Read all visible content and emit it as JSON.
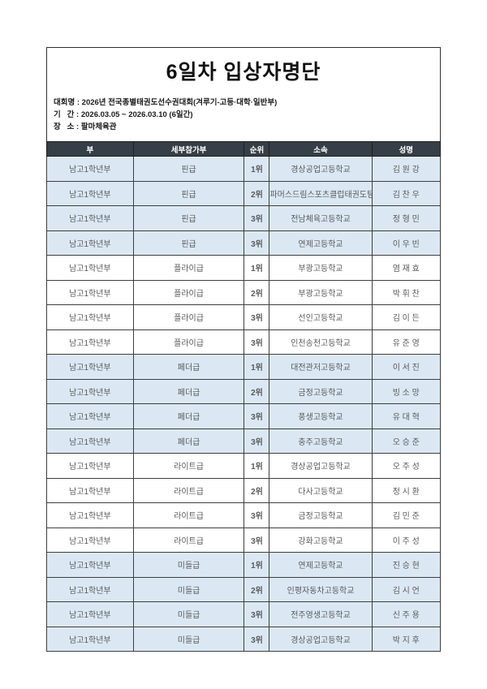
{
  "page": {
    "title": "6일차 입상자명단",
    "info_lines": [
      "대회명 : 2026년 전국종별태권도선수권대회(겨루기-고등·대학·일반부)",
      "기   간 : 2026.03.05 ~ 2026.03.10 (6일간)",
      "장   소 : 팔마체육관"
    ]
  },
  "colors": {
    "header_bg": "#363e47",
    "band_blue": "#dbe8f4",
    "body_text": "#595959",
    "border": "#3e3e3e"
  },
  "table": {
    "headers": [
      "부",
      "세부참가부",
      "순위",
      "소속",
      "성명"
    ],
    "rows": [
      [
        "남고1학년부",
        "핀급",
        "1위",
        "경상공업고등학교",
        "김 원 강"
      ],
      [
        "남고1학년부",
        "핀급",
        "2위",
        "파머스드림스포츠클럽태권도팀",
        "김 찬 우"
      ],
      [
        "남고1학년부",
        "핀급",
        "3위",
        "전남체육고등학교",
        "정 형 민"
      ],
      [
        "남고1학년부",
        "핀급",
        "3위",
        "연제고등학교",
        "이 우 빈"
      ],
      [
        "남고1학년부",
        "플라이급",
        "1위",
        "부광고등학교",
        "염 재 효"
      ],
      [
        "남고1학년부",
        "플라이급",
        "2위",
        "부광고등학교",
        "박 휘 찬"
      ],
      [
        "남고1학년부",
        "플라이급",
        "3위",
        "선인고등학교",
        "김 이 든"
      ],
      [
        "남고1학년부",
        "플라이급",
        "3위",
        "인천송천고등학교",
        "유 준 영"
      ],
      [
        "남고1학년부",
        "페더급",
        "1위",
        "대전관저고등학교",
        "이 서 진"
      ],
      [
        "남고1학년부",
        "페더급",
        "2위",
        "금정고등학교",
        "빙 소 망"
      ],
      [
        "남고1학년부",
        "페더급",
        "3위",
        "풍생고등학교",
        "유 대 혁"
      ],
      [
        "남고1학년부",
        "페더급",
        "3위",
        "충주고등학교",
        "오 승 준"
      ],
      [
        "남고1학년부",
        "라이트급",
        "1위",
        "경상공업고등학교",
        "오 주 성"
      ],
      [
        "남고1학년부",
        "라이트급",
        "2위",
        "다사고등학교",
        "정 시 환"
      ],
      [
        "남고1학년부",
        "라이트급",
        "3위",
        "금정고등학교",
        "김 민 준"
      ],
      [
        "남고1학년부",
        "라이트급",
        "3위",
        "강화고등학교",
        "이 주 성"
      ],
      [
        "남고1학년부",
        "미들급",
        "1위",
        "연제고등학교",
        "진 승 현"
      ],
      [
        "남고1학년부",
        "미들급",
        "2위",
        "인평자동차고등학교",
        "김 시 언"
      ],
      [
        "남고1학년부",
        "미들급",
        "3위",
        "전주영생고등학교",
        "신 주 용"
      ],
      [
        "남고1학년부",
        "미들급",
        "3위",
        "경상공업고등학교",
        "박 지 후"
      ]
    ]
  }
}
